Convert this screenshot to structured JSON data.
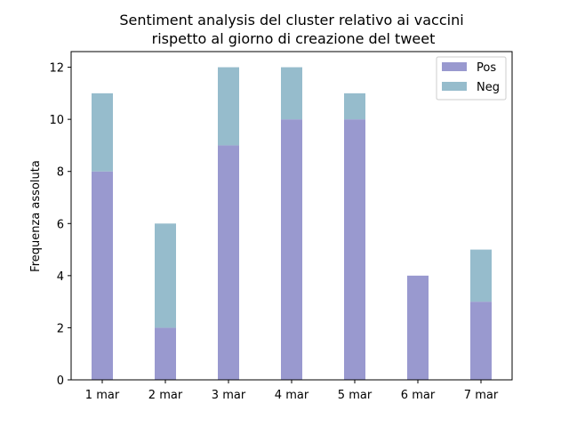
{
  "chart_data": {
    "type": "bar",
    "stacked": true,
    "title": "Sentiment analysis del cluster relativo ai vaccini",
    "subtitle": "rispetto al giorno di creazione del tweet",
    "xlabel": "",
    "ylabel": "Frequenza assoluta",
    "categories": [
      "1 mar",
      "2 mar",
      "3 mar",
      "4 mar",
      "5 mar",
      "6 mar",
      "7 mar"
    ],
    "series": [
      {
        "name": "Pos",
        "color": "#9999cf",
        "values": [
          8,
          2,
          9,
          10,
          10,
          4,
          3
        ]
      },
      {
        "name": "Neg",
        "color": "#96bccc",
        "values": [
          3,
          4,
          3,
          2,
          1,
          0,
          2
        ]
      }
    ],
    "ylim": [
      0,
      12.6
    ],
    "yticks": [
      0,
      2,
      4,
      6,
      8,
      10,
      12
    ],
    "grid": false,
    "legend": "top-right"
  }
}
